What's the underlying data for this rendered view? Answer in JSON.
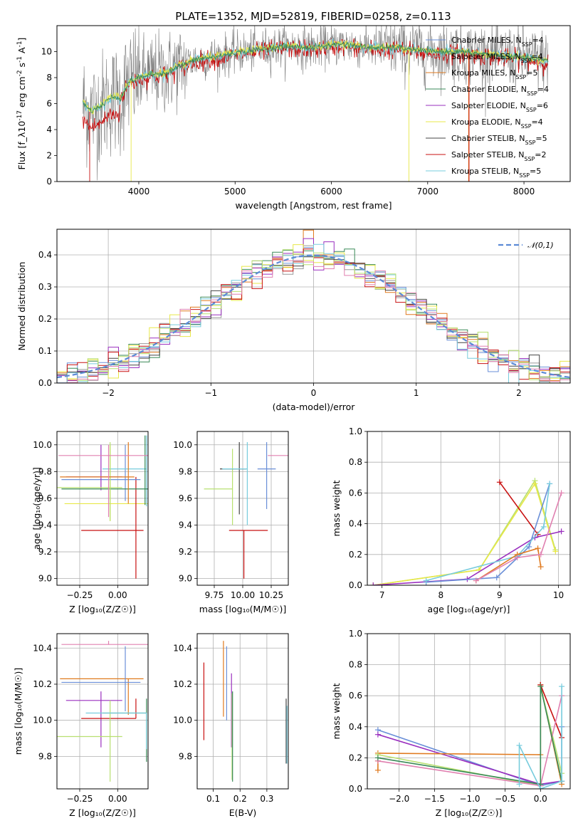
{
  "colors": {
    "chabrier_miles": "#6a8fd8",
    "salpeter_miles": "#9a9a9a",
    "kroupa_miles": "#e07a1f",
    "chabrier_elodie": "#3a8a58",
    "salpeter_elodie": "#9a2fbf",
    "kroupa_elodie": "#e8e848",
    "chabrier_stelib": "#444444",
    "salpeter_stelib": "#c81010",
    "kroupa_stelib": "#77ccdd",
    "green_light": "#b8e070",
    "pink": "#e080b0",
    "grid": "#b0b0b0"
  },
  "chart_data": [
    {
      "id": "spectrum",
      "type": "line",
      "title": "PLATE=1352, MJD=52819, FIBERID=0258, z=0.113",
      "xlabel": "wavelength [Angstrom, rest frame]",
      "ylabel": "Flux [f_λ10^-17 erg cm^-2 s^-1 A^-1]",
      "xlim": [
        3150,
        8480
      ],
      "ylim": [
        0,
        12
      ],
      "xticks": [
        "4000",
        "5000",
        "6000",
        "7000",
        "8000"
      ],
      "yticks": [
        "0",
        "2",
        "4",
        "6",
        "8",
        "10"
      ],
      "legend_position": "right",
      "series": [
        {
          "name": "Chabrier MILES, N_SSP=4",
          "color_key": "chabrier_miles"
        },
        {
          "name": "Salpeter MILES, N_SSP=4",
          "color_key": "salpeter_miles"
        },
        {
          "name": "Kroupa MILES, N_SSP=5",
          "color_key": "kroupa_miles"
        },
        {
          "name": "Chabrier ELODIE, N_SSP=4",
          "color_key": "chabrier_elodie"
        },
        {
          "name": "Salpeter ELODIE, N_SSP=6",
          "color_key": "salpeter_elodie"
        },
        {
          "name": "Kroupa ELODIE, N_SSP=4",
          "color_key": "kroupa_elodie"
        },
        {
          "name": "Chabrier STELIB, N_SSP=5",
          "color_key": "chabrier_stelib"
        },
        {
          "name": "Salpeter STELIB, N_SSP=2",
          "color_key": "salpeter_stelib"
        },
        {
          "name": "Kroupa STELIB, N_SSP=5",
          "color_key": "kroupa_stelib"
        }
      ],
      "continuum": {
        "x": [
          3420,
          3500,
          3600,
          3700,
          3800,
          3900,
          4000,
          4100,
          4200,
          4300,
          4400,
          4600,
          4800,
          5000,
          5200,
          5500,
          5800,
          6100,
          6400,
          6700,
          7000,
          7300,
          7600,
          7900,
          8250
        ],
        "y": [
          5.9,
          5.3,
          5.6,
          6.3,
          6.3,
          7.7,
          8.0,
          8.2,
          8.3,
          8.4,
          8.8,
          9.4,
          9.6,
          9.9,
          10.1,
          10.4,
          10.3,
          10.6,
          10.3,
          10.3,
          10.0,
          10.0,
          9.8,
          9.6,
          9.3
        ]
      }
    },
    {
      "id": "residuals",
      "type": "step",
      "xlabel": "(data-model)/error",
      "ylabel": "Normed distribution",
      "xlim": [
        -2.5,
        2.5
      ],
      "ylim": [
        0,
        0.48
      ],
      "xticks": [
        "−2",
        "−1",
        "0",
        "1",
        "2"
      ],
      "yticks": [
        "0.0",
        "0.1",
        "0.2",
        "0.3",
        "0.4"
      ],
      "grid": true,
      "legend": "𝒩(0,1)",
      "legend_position": "top-right",
      "bin_width": 0.1
    },
    {
      "id": "age_vs_Z",
      "type": "errorbar",
      "xlabel": "Z [log10(Z/Z☉)]",
      "ylabel": "age [log10(age/yr)]",
      "xlim": [
        -0.4,
        0.2
      ],
      "ylim": [
        8.95,
        10.1
      ],
      "xticks": [
        "−0.25",
        "0.00"
      ],
      "yticks": [
        "9.0",
        "9.2",
        "9.4",
        "9.6",
        "9.8",
        "10.0"
      ],
      "grid": true,
      "points": [
        {
          "x": -0.05,
          "y": 9.56,
          "xerr": [
            0.3,
            0.25
          ],
          "yerr": [
            0.13,
            0.44
          ],
          "color_key": "kroupa_elodie"
        },
        {
          "x": 0.12,
          "y": 9.36,
          "xerr": [
            0.36,
            0.05
          ],
          "yerr": [
            0.36,
            0.4
          ],
          "color_key": "salpeter_stelib"
        },
        {
          "x": 0.05,
          "y": 9.74,
          "xerr": [
            0.42,
            0.1
          ],
          "yerr": [
            0.16,
            0.26
          ],
          "color_key": "chabrier_miles"
        },
        {
          "x": -0.11,
          "y": 9.76,
          "xerr": [
            0.23,
            0.14
          ],
          "yerr": [
            0.1,
            0.24
          ],
          "color_key": "salpeter_elodie"
        },
        {
          "x": 0.19,
          "y": 9.82,
          "xerr": [
            0.29,
            0.0
          ],
          "yerr": [
            0.28,
            0.25
          ],
          "color_key": "kroupa_stelib"
        },
        {
          "x": 0.18,
          "y": 9.67,
          "xerr": [
            0.55,
            0.02
          ],
          "yerr": [
            0.12,
            0.4
          ],
          "color_key": "chabrier_elodie"
        },
        {
          "x": -0.05,
          "y": 9.68,
          "xerr": [
            0.35,
            0.08
          ],
          "yerr": [
            0.25,
            0.34
          ],
          "color_key": "green_light"
        },
        {
          "x": 0.07,
          "y": 9.76,
          "xerr": [
            0.45,
            0.04
          ],
          "yerr": [
            0.2,
            0.26
          ],
          "color_key": "kroupa_miles"
        },
        {
          "x": -0.06,
          "y": 9.92,
          "xerr": [
            0.33,
            0.28
          ],
          "yerr": [
            0.46,
            0.08
          ],
          "color_key": "pink"
        }
      ]
    },
    {
      "id": "age_vs_mass",
      "type": "errorbar",
      "xlabel": "mass [log10(M/M☉)]",
      "ylabel": "",
      "xlim": [
        9.6,
        10.4
      ],
      "ylim": [
        8.95,
        10.1
      ],
      "xticks": [
        "9.75",
        "10.00",
        "10.25"
      ],
      "yticks": [
        "9.0",
        "9.2",
        "9.4",
        "9.6",
        "9.8",
        "10.0"
      ],
      "grid": true,
      "points": [
        {
          "x": 9.91,
          "y": 9.67,
          "xerr": [
            0.25,
            0.0
          ],
          "yerr": [
            0.27,
            0.3
          ],
          "color_key": "green_light"
        },
        {
          "x": 10.01,
          "y": 9.36,
          "xerr": [
            0.13,
            0.21
          ],
          "yerr": [
            0.36,
            0.0
          ],
          "color_key": "salpeter_stelib"
        },
        {
          "x": 10.21,
          "y": 9.82,
          "xerr": [
            0.08,
            0.08
          ],
          "yerr": [
            0.3,
            0.2
          ],
          "color_key": "chabrier_miles"
        },
        {
          "x": 9.97,
          "y": 9.82,
          "xerr": [
            0.17,
            0.06
          ],
          "yerr": [
            0.34,
            0.2
          ],
          "color_key": "chabrier_stelib"
        },
        {
          "x": 10.42,
          "y": 9.92,
          "xerr": [
            0.2,
            0.0
          ],
          "yerr": [
            0.47,
            0.08
          ],
          "color_key": "pink"
        },
        {
          "x": 10.04,
          "y": 9.82,
          "xerr": [
            0.22,
            0.0
          ],
          "yerr": [
            0.42,
            0.2
          ],
          "color_key": "kroupa_stelib"
        }
      ]
    },
    {
      "id": "mass_weight_vs_age",
      "type": "line",
      "xlabel": "age [log10(age/yr)]",
      "ylabel": "mass weight",
      "xlim": [
        6.75,
        10.2
      ],
      "ylim": [
        0,
        1.0
      ],
      "xticks": [
        "7",
        "8",
        "9",
        "10"
      ],
      "yticks": [
        "0.0",
        "0.2",
        "0.4",
        "0.6",
        "0.8",
        "1.0"
      ],
      "grid": true,
      "series": [
        {
          "color_key": "green_light",
          "x": [
            6.85,
            8.65,
            9.6,
            9.95
          ],
          "y": [
            0.0,
            0.1,
            0.68,
            0.23
          ]
        },
        {
          "color_key": "kroupa_elodie",
          "x": [
            6.85,
            8.65,
            9.6,
            9.95
          ],
          "y": [
            0.0,
            0.1,
            0.66,
            0.22
          ]
        },
        {
          "color_key": "salpeter_stelib",
          "x": [
            9.0,
            9.65
          ],
          "y": [
            0.67,
            0.33
          ]
        },
        {
          "color_key": "salpeter_elodie",
          "x": [
            6.85,
            8.45,
            9.6,
            10.05
          ],
          "y": [
            0.0,
            0.04,
            0.31,
            0.35
          ]
        },
        {
          "color_key": "chabrier_miles",
          "x": [
            7.75,
            8.95,
            9.5,
            9.85
          ],
          "y": [
            0.02,
            0.05,
            0.25,
            0.66
          ]
        },
        {
          "color_key": "kroupa_stelib",
          "x": [
            7.75,
            9.3,
            9.75,
            9.85
          ],
          "y": [
            0.03,
            0.19,
            0.38,
            0.66
          ]
        },
        {
          "color_key": "kroupa_miles",
          "x": [
            8.6,
            9.3,
            9.65,
            9.7
          ],
          "y": [
            0.03,
            0.2,
            0.24,
            0.12
          ]
        },
        {
          "color_key": "pink",
          "x": [
            8.6,
            9.3,
            9.7,
            10.05
          ],
          "y": [
            0.03,
            0.18,
            0.2,
            0.6
          ]
        }
      ]
    },
    {
      "id": "mass_vs_Z",
      "type": "errorbar",
      "xlabel": "Z [log10(Z/Z☉)]",
      "ylabel": "mass [log10(M/M☉)]",
      "xlim": [
        -0.4,
        0.2
      ],
      "ylim": [
        9.62,
        10.48
      ],
      "xticks": [
        "−0.25",
        "0.00"
      ],
      "yticks": [
        "9.8",
        "10.0",
        "10.2",
        "10.4"
      ],
      "grid": true,
      "points": [
        {
          "x": -0.06,
          "y": 10.42,
          "xerr": [
            0.31,
            0.33
          ],
          "yerr": [
            0.0,
            0.02
          ],
          "color_key": "pink"
        },
        {
          "x": 0.07,
          "y": 10.23,
          "xerr": [
            0.45,
            0.1
          ],
          "yerr": [
            0.2,
            0.0
          ],
          "color_key": "kroupa_miles"
        },
        {
          "x": 0.05,
          "y": 10.21,
          "xerr": [
            0.42,
            0.1
          ],
          "yerr": [
            0.16,
            0.2
          ],
          "color_key": "chabrier_miles"
        },
        {
          "x": -0.11,
          "y": 10.11,
          "xerr": [
            0.23,
            0.14
          ],
          "yerr": [
            0.26,
            0.05
          ],
          "color_key": "salpeter_elodie"
        },
        {
          "x": 0.12,
          "y": 10.01,
          "xerr": [
            0.36,
            0.0
          ],
          "yerr": [
            0.0,
            0.11
          ],
          "color_key": "salpeter_stelib"
        },
        {
          "x": 0.19,
          "y": 10.04,
          "xerr": [
            0.29,
            0.0
          ],
          "yerr": [
            0.27,
            0.08
          ],
          "color_key": "chabrier_elodie"
        },
        {
          "x": -0.05,
          "y": 9.91,
          "xerr": [
            0.35,
            0.08
          ],
          "yerr": [
            0.25,
            0.2
          ],
          "color_key": "green_light"
        },
        {
          "x": 0.19,
          "y": 10.04,
          "xerr": [
            0.4,
            0.0
          ],
          "yerr": [
            0.2,
            0.0
          ],
          "color_key": "kroupa_stelib"
        }
      ]
    },
    {
      "id": "mass_vs_ebv",
      "type": "errorbar",
      "xlabel": "E(B-V)",
      "ylabel": "",
      "xlim": [
        0.04,
        0.38
      ],
      "ylim": [
        9.62,
        10.48
      ],
      "xticks": [
        "0.1",
        "0.2",
        "0.3"
      ],
      "yticks": [
        "9.8",
        "10.0",
        "10.2",
        "10.4"
      ],
      "grid": true,
      "points": [
        {
          "x": 0.065,
          "y": 10.1,
          "yerr": [
            0.21,
            0.22
          ],
          "color_key": "salpeter_stelib"
        },
        {
          "x": 0.138,
          "y": 10.22,
          "yerr": [
            0.2,
            0.22
          ],
          "color_key": "kroupa_miles"
        },
        {
          "x": 0.15,
          "y": 10.2,
          "yerr": [
            0.2,
            0.21
          ],
          "color_key": "chabrier_miles"
        },
        {
          "x": 0.168,
          "y": 10.05,
          "yerr": [
            0.2,
            0.21
          ],
          "color_key": "salpeter_elodie"
        },
        {
          "x": 0.17,
          "y": 9.95,
          "yerr": [
            0.28,
            0.2
          ],
          "color_key": "green_light"
        },
        {
          "x": 0.172,
          "y": 9.93,
          "yerr": [
            0.27,
            0.23
          ],
          "color_key": "chabrier_elodie"
        },
        {
          "x": 0.372,
          "y": 9.96,
          "yerr": [
            0.2,
            0.16
          ],
          "color_key": "chabrier_stelib"
        },
        {
          "x": 0.375,
          "y": 9.94,
          "yerr": [
            0.18,
            0.14
          ],
          "color_key": "kroupa_stelib"
        }
      ]
    },
    {
      "id": "mass_weight_vs_Z",
      "type": "line",
      "xlabel": "Z [log10(Z/Z☉)]",
      "ylabel": "mass weight",
      "xlim": [
        -2.45,
        0.42
      ],
      "ylim": [
        0,
        1.0
      ],
      "xticks": [
        "−2.0",
        "−1.5",
        "−1.0",
        "−0.5",
        "0.0"
      ],
      "yticks": [
        "0.0",
        "0.2",
        "0.4",
        "0.6",
        "0.8",
        "1.0"
      ],
      "grid": true,
      "series": [
        {
          "color_key": "chabrier_miles",
          "x": [
            -2.3,
            0.0,
            0.3,
            0.3
          ],
          "y": [
            0.38,
            0.02,
            0.05,
            0.4
          ]
        },
        {
          "color_key": "salpeter_elodie",
          "x": [
            -2.3,
            0.0,
            0.3
          ],
          "y": [
            0.35,
            0.03,
            0.05
          ]
        },
        {
          "color_key": "kroupa_miles",
          "x": [
            -2.3,
            0.0,
            0.0,
            0.3
          ],
          "y": [
            0.23,
            0.22,
            0.67,
            0.03
          ]
        },
        {
          "color_key": "kroupa_miles",
          "x": [
            -2.3,
            -2.3
          ],
          "y": [
            0.12,
            0.18
          ]
        },
        {
          "color_key": "green_light",
          "x": [
            -2.3,
            0.0,
            0.0,
            0.3
          ],
          "y": [
            0.22,
            0.02,
            0.66,
            0.1
          ]
        },
        {
          "color_key": "salpeter_stelib",
          "x": [
            0.0,
            0.3
          ],
          "y": [
            0.67,
            0.33
          ]
        },
        {
          "color_key": "pink",
          "x": [
            -2.3,
            0.0,
            0.3
          ],
          "y": [
            0.18,
            0.02,
            0.6
          ]
        },
        {
          "color_key": "chabrier_elodie",
          "x": [
            -2.3,
            0.0,
            0.0,
            0.3
          ],
          "y": [
            0.2,
            0.03,
            0.66,
            0.05
          ]
        },
        {
          "color_key": "kroupa_stelib",
          "x": [
            -0.3,
            -0.3,
            0.0,
            0.3,
            0.3
          ],
          "y": [
            0.03,
            0.28,
            0.0,
            0.05,
            0.66
          ]
        }
      ]
    }
  ]
}
